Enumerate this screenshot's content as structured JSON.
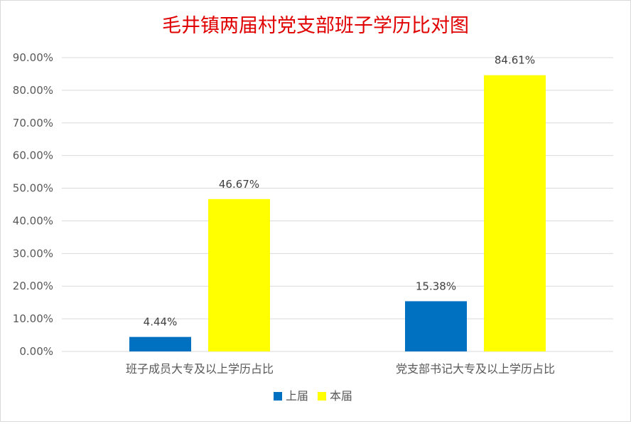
{
  "chart_data": {
    "type": "bar",
    "title": "毛井镇两届村党支部班子学历比对图",
    "categories": [
      "班子成员大专及以上学历占比",
      "党支部书记大专及以上学历占比"
    ],
    "series": [
      {
        "name": "上届",
        "values": [
          4.44,
          15.38
        ],
        "labels": [
          "4.44%",
          "15.38%"
        ],
        "color": "#0070c0"
      },
      {
        "name": "本届",
        "values": [
          46.67,
          84.61
        ],
        "labels": [
          "46.67%",
          "84.61%"
        ],
        "color": "#ffff00"
      }
    ],
    "y_ticks": [
      0,
      10,
      20,
      30,
      40,
      50,
      60,
      70,
      80,
      90
    ],
    "y_tick_labels": [
      "0.00%",
      "10.00%",
      "20.00%",
      "30.00%",
      "40.00%",
      "50.00%",
      "60.00%",
      "70.00%",
      "80.00%",
      "90.00%"
    ],
    "ylim": [
      0,
      90
    ],
    "grid": true,
    "legend_position": "bottom",
    "title_color": "#e00000"
  }
}
